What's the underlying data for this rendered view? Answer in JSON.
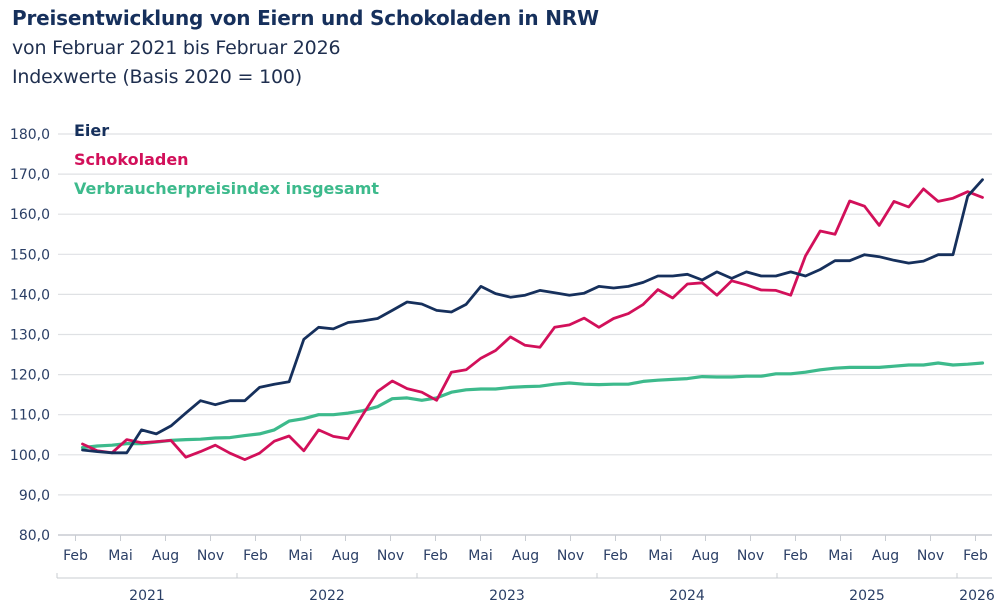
{
  "header": {
    "title": "Preisentwicklung von Eiern und Schokoladen in NRW",
    "subtitle1": "von Februar 2021 bis Februar 2026",
    "subtitle2": "Indexwerte (Basis 2020 = 100)"
  },
  "chart_data": {
    "type": "line",
    "title": "Preisentwicklung von Eiern und Schokoladen in NRW",
    "subtitle": "von Februar 2021 bis Februar 2026 — Indexwerte (Basis 2020 = 100)",
    "xlabel": "",
    "ylabel": "",
    "ylim": [
      80,
      180
    ],
    "yticks": [
      "80,0",
      "90,0",
      "100,0",
      "110,0",
      "120,0",
      "130,0",
      "140,0",
      "150,0",
      "160,0",
      "170,0",
      "180,0"
    ],
    "ytick_values": [
      80,
      90,
      100,
      110,
      120,
      130,
      140,
      150,
      160,
      170,
      180
    ],
    "grid": true,
    "legend_position": "top-left",
    "x_start": "2021-02",
    "x_end": "2026-02",
    "month_ticks": [
      "Feb",
      "Mai",
      "Aug",
      "Nov",
      "Feb",
      "Mai",
      "Aug",
      "Nov",
      "Feb",
      "Mai",
      "Aug",
      "Nov",
      "Feb",
      "Mai",
      "Aug",
      "Nov",
      "Feb",
      "Mai",
      "Aug",
      "Nov",
      "Feb"
    ],
    "years": [
      "2021",
      "2022",
      "2023",
      "2024",
      "2025",
      "2026"
    ],
    "series": [
      {
        "name": "Eier",
        "color": "#16305c",
        "values": [
          101.2,
          100.8,
          100.5,
          100.5,
          106.2,
          105.2,
          107.2,
          110.4,
          113.5,
          112.5,
          113.5,
          113.5,
          116.8,
          117.6,
          118.2,
          128.8,
          131.8,
          131.4,
          133.0,
          133.4,
          134.0,
          136.0,
          138.1,
          137.6,
          136.0,
          135.6,
          137.5,
          142.0,
          140.2,
          139.3,
          139.8,
          141.0,
          140.4,
          139.8,
          140.3,
          142.0,
          141.6,
          142.0,
          143.0,
          144.6,
          144.6,
          145.0,
          143.6,
          145.6,
          144.0,
          145.6,
          144.6,
          144.6,
          145.6,
          144.6,
          146.2,
          148.4,
          148.4,
          149.9,
          149.4,
          148.5,
          147.8,
          148.3,
          149.9,
          149.9,
          164.5,
          168.6
        ]
      },
      {
        "name": "Schokoladen",
        "color": "#d2105a",
        "values": [
          102.7,
          101.0,
          100.5,
          103.8,
          103.0,
          103.3,
          103.6,
          99.4,
          100.8,
          102.4,
          100.4,
          98.8,
          100.4,
          103.4,
          104.7,
          101.0,
          106.2,
          104.6,
          104.0,
          110.0,
          115.8,
          118.4,
          116.5,
          115.6,
          113.6,
          120.6,
          121.2,
          124.1,
          126.0,
          129.4,
          127.3,
          126.8,
          131.8,
          132.4,
          134.1,
          131.8,
          134.0,
          135.2,
          137.5,
          141.2,
          139.1,
          142.6,
          142.9,
          139.8,
          143.4,
          142.4,
          141.1,
          141.0,
          139.8,
          149.6,
          155.8,
          155.0,
          163.3,
          162.0,
          157.2,
          163.2,
          161.8,
          166.3,
          163.2,
          164.0,
          165.6,
          164.2
        ]
      },
      {
        "name": "Verbraucherpreisindex insgesamt",
        "color": "#3dba8c",
        "values": [
          101.8,
          102.2,
          102.4,
          102.8,
          102.8,
          103.2,
          103.6,
          103.8,
          103.9,
          104.2,
          104.3,
          104.8,
          105.2,
          106.2,
          108.4,
          109.0,
          110.0,
          110.0,
          110.4,
          111.0,
          112.0,
          114.0,
          114.2,
          113.6,
          114.2,
          115.6,
          116.2,
          116.4,
          116.4,
          116.8,
          117.0,
          117.1,
          117.6,
          117.9,
          117.6,
          117.5,
          117.6,
          117.6,
          118.3,
          118.6,
          118.8,
          119.0,
          119.5,
          119.4,
          119.4,
          119.6,
          119.6,
          120.2,
          120.2,
          120.6,
          121.2,
          121.6,
          121.8,
          121.8,
          121.8,
          122.1,
          122.4,
          122.4,
          122.9,
          122.4,
          122.6,
          122.9
        ]
      }
    ]
  }
}
